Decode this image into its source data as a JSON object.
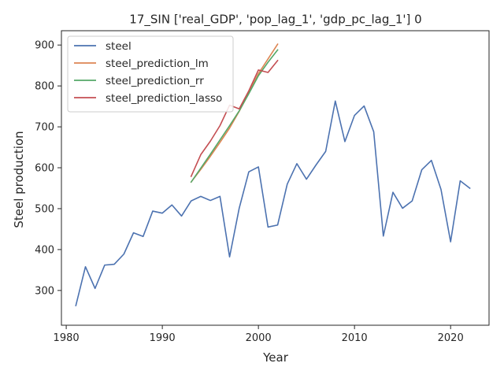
{
  "chart_data": {
    "type": "line",
    "title": "17_SIN ['real_GDP', 'pop_lag_1', 'gdp_pc_lag_1'] 0",
    "xlabel": "Year",
    "ylabel": "Steel production",
    "xlim": [
      1979.5,
      2024
    ],
    "ylim": [
      215,
      935
    ],
    "xticks": [
      1980,
      1990,
      2000,
      2010,
      2020
    ],
    "yticks": [
      300,
      400,
      500,
      600,
      700,
      800,
      900
    ],
    "grid": false,
    "legend_position": "upper-left",
    "series": [
      {
        "name": "steel",
        "color": "#4c72b0",
        "x": [
          1981,
          1982,
          1983,
          1984,
          1985,
          1986,
          1987,
          1988,
          1989,
          1990,
          1991,
          1992,
          1993,
          1994,
          1995,
          1996,
          1997,
          1998,
          1999,
          2000,
          2001,
          2002,
          2003,
          2004,
          2005,
          2006,
          2007,
          2008,
          2009,
          2010,
          2011,
          2012,
          2013,
          2014,
          2015,
          2016,
          2017,
          2018,
          2019,
          2020,
          2021,
          2022
        ],
        "y": [
          263,
          358,
          305,
          362,
          364,
          389,
          441,
          432,
          494,
          489,
          509,
          482,
          519,
          530,
          520,
          530,
          382,
          501,
          590,
          602,
          455,
          460,
          560,
          610,
          572,
          607,
          640,
          763,
          664,
          728,
          751,
          688,
          433,
          540,
          501,
          519,
          595,
          618,
          547,
          419,
          568,
          550
        ]
      },
      {
        "name": "steel_prediction_lm",
        "color": "#dd8452",
        "x": [
          1993,
          1994,
          1995,
          1996,
          1997,
          1998,
          1999,
          2000,
          2001,
          2002
        ],
        "y": [
          565,
          596,
          628,
          662,
          697,
          738,
          783,
          830,
          866,
          902
        ]
      },
      {
        "name": "steel_prediction_rr",
        "color": "#55a868",
        "x": [
          1993,
          1994,
          1995,
          1996,
          1997,
          1998,
          1999,
          2000,
          2001,
          2002
        ],
        "y": [
          565,
          599,
          633,
          668,
          703,
          739,
          781,
          825,
          858,
          888
        ]
      },
      {
        "name": "steel_prediction_lasso",
        "color": "#c44e52",
        "x": [
          1993,
          1994,
          1995,
          1996,
          1997,
          1998,
          1999,
          2000,
          2001,
          2002
        ],
        "y": [
          579,
          632,
          665,
          703,
          753,
          744,
          788,
          839,
          833,
          862
        ]
      }
    ]
  }
}
